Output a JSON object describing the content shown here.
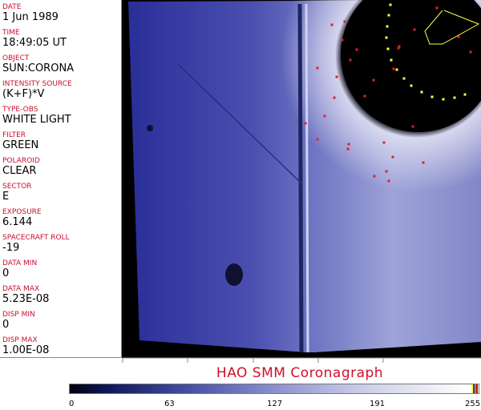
{
  "fields": [
    {
      "label": "DATE",
      "value": "1 Jun 1989"
    },
    {
      "label": "TIME",
      "value": "18:49:05 UT"
    },
    {
      "label": "OBJECT",
      "value": "SUN:CORONA"
    },
    {
      "label": "INTENSITY SOURCE",
      "value": "(K+F)*V"
    },
    {
      "label": "TYPE-OBS",
      "value": "WHITE LIGHT"
    },
    {
      "label": "FILTER",
      "value": "GREEN"
    },
    {
      "label": "POLAROID",
      "value": "CLEAR"
    },
    {
      "label": "SECTOR",
      "value": "E"
    },
    {
      "label": "EXPOSURE",
      "value": "6.144"
    },
    {
      "label": "SPACECRAFT ROLL",
      "value": "-19"
    },
    {
      "label": "DATA MIN",
      "value": "0"
    },
    {
      "label": "DATA MAX",
      "value": "5.23E-08"
    },
    {
      "label": "DISP MIN",
      "value": "0"
    },
    {
      "label": "DISP MAX",
      "value": "1.00E-08"
    }
  ],
  "title": "HAO  SMM Coronagraph",
  "colorbar": {
    "ticks": [
      "0",
      "63",
      "127",
      "191",
      "255"
    ],
    "colors": {
      "low": "#000010",
      "mid": "#8a90cc",
      "high": "#ffffff"
    }
  },
  "colors": {
    "label": "#c8102e",
    "title": "#d0102a",
    "overlay_red": "#e0202a",
    "overlay_yellow": "#ffff40"
  }
}
